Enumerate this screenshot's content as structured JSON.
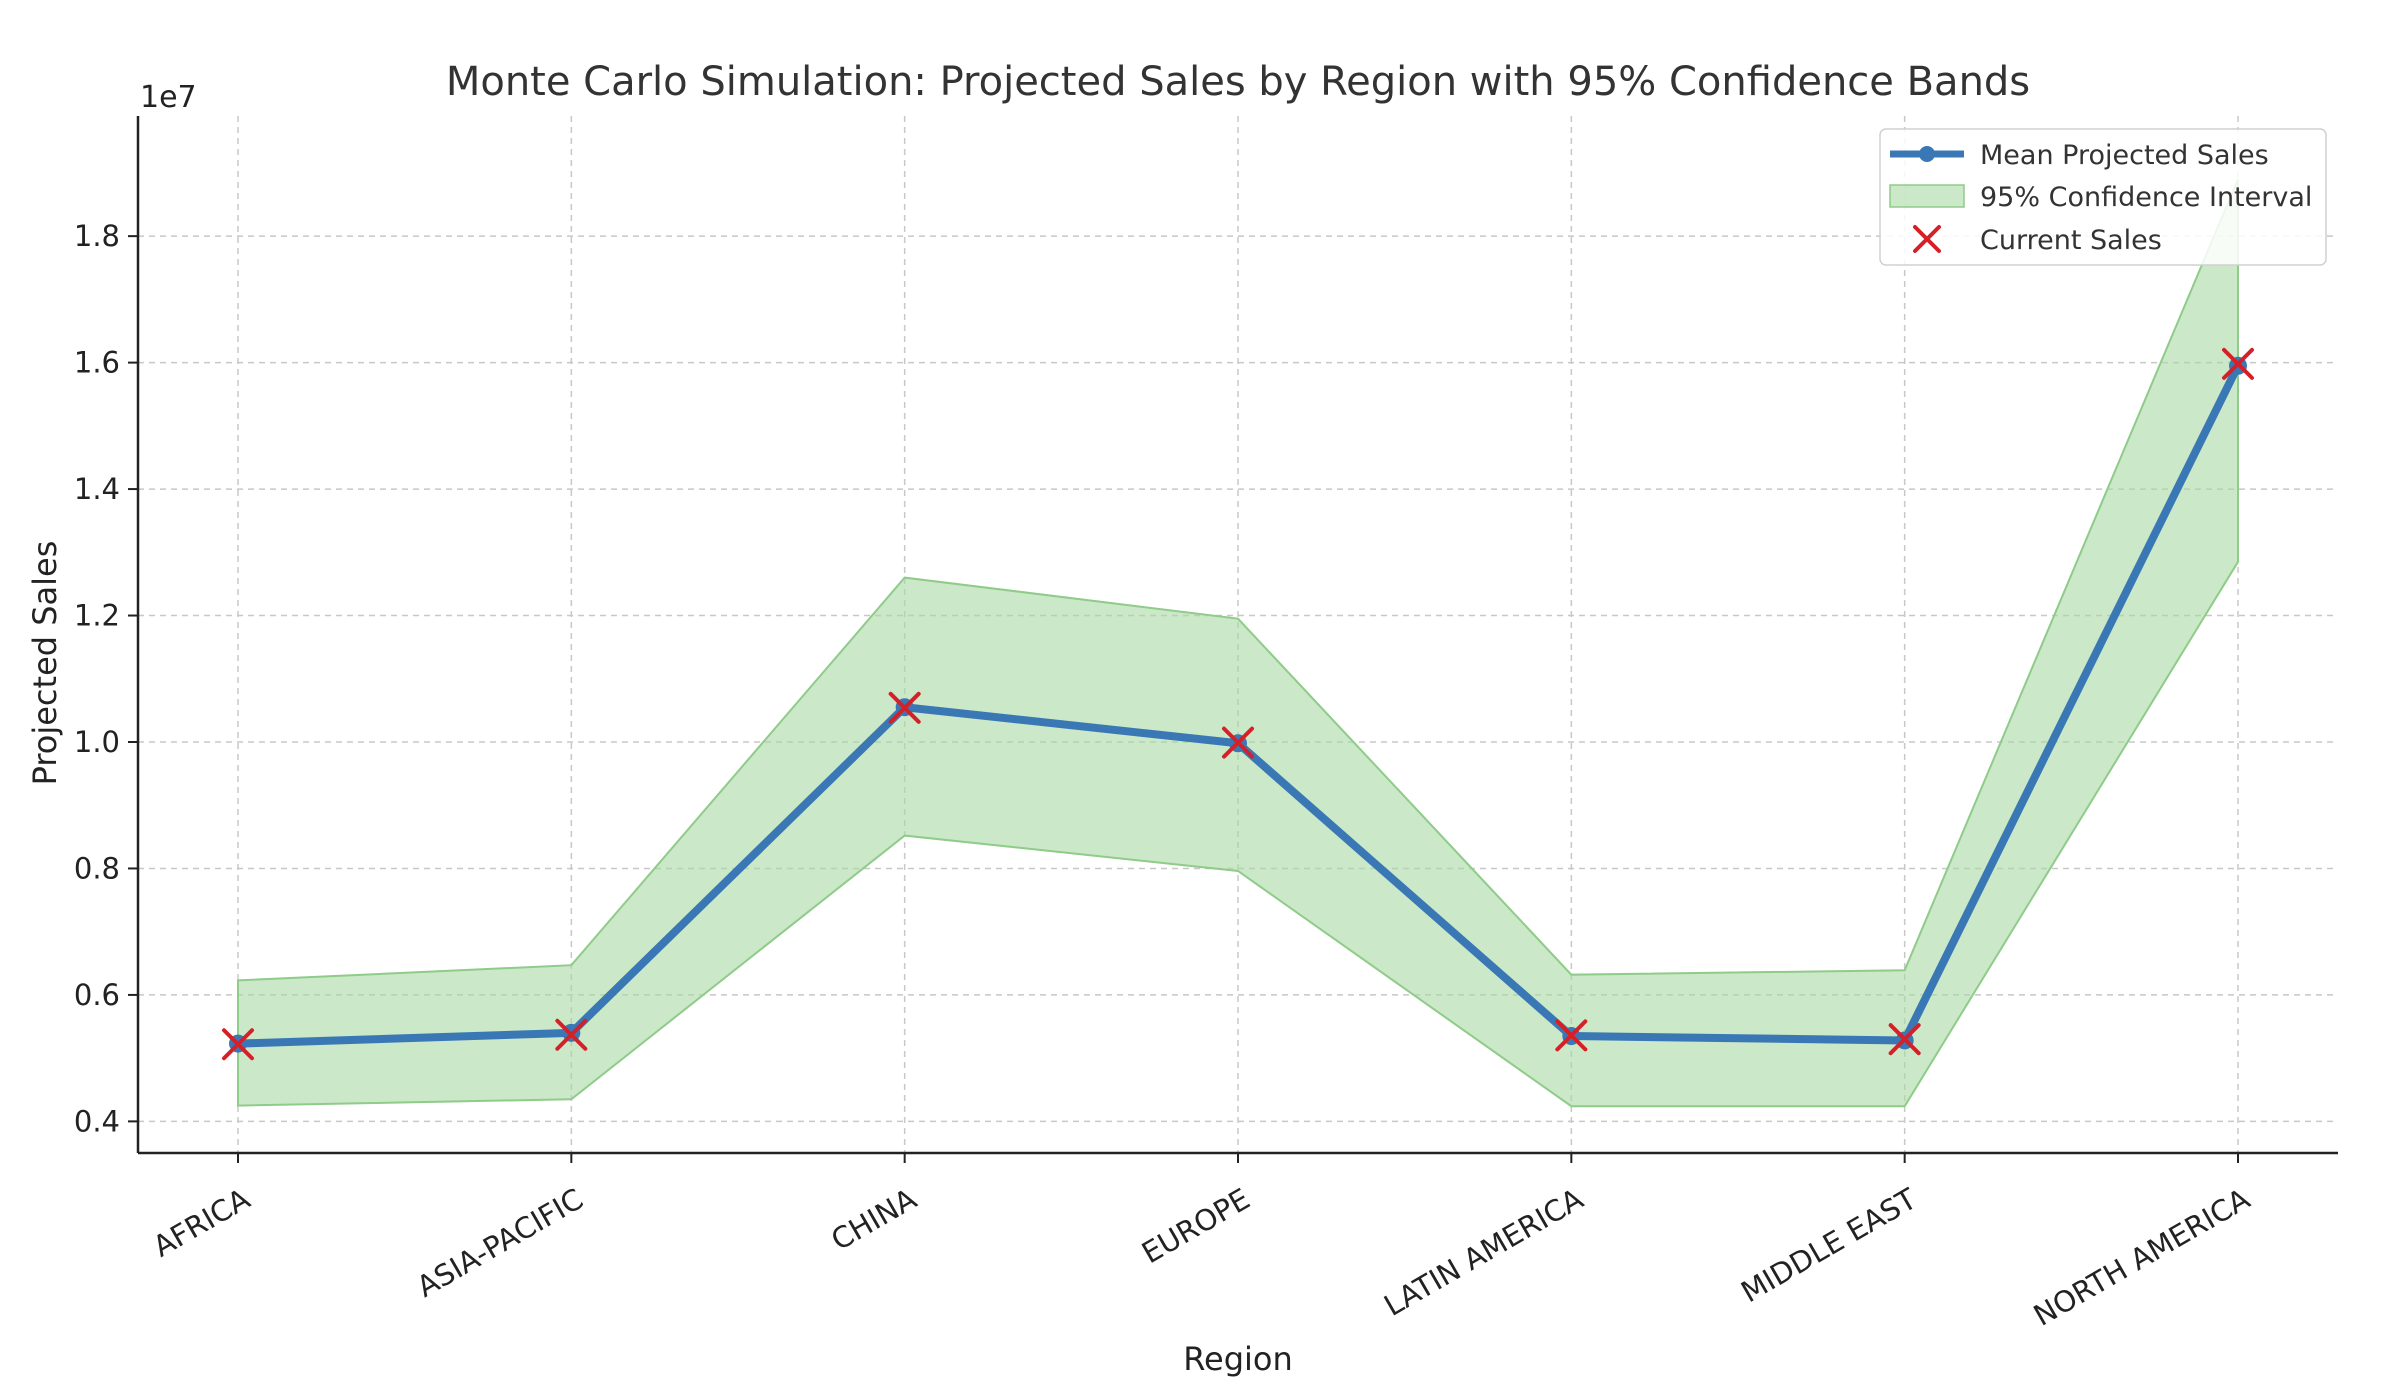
{
  "chart_data": {
    "type": "line",
    "title": "Monte Carlo Simulation: Projected Sales by Region with 95% Confidence Bands",
    "xlabel": "Region",
    "ylabel": "Projected Sales",
    "y_offset_label": "1e7",
    "y_scale_factor": 10000000,
    "ylim": [
      3500000,
      19900000
    ],
    "yticks": [
      4000000,
      6000000,
      8000000,
      10000000,
      12000000,
      14000000,
      16000000,
      18000000
    ],
    "ytick_labels": [
      "0.4",
      "0.6",
      "0.8",
      "1.0",
      "1.2",
      "1.4",
      "1.6",
      "1.8"
    ],
    "categories": [
      "AFRICA",
      "ASIA-PACIFIC",
      "CHINA",
      "EUROPE",
      "LATIN AMERICA",
      "MIDDLE EAST",
      "NORTH AMERICA"
    ],
    "grid": true,
    "legend_position": "top-right",
    "series": [
      {
        "name": "Mean Projected Sales",
        "kind": "line",
        "color": "#3a78b5",
        "values": [
          5230000,
          5400000,
          10550000,
          9980000,
          5350000,
          5280000,
          15950000
        ]
      },
      {
        "name": "95% Confidence Interval",
        "kind": "band",
        "color": "#a8d8a3",
        "lower": [
          4250000,
          4350000,
          8520000,
          7960000,
          4240000,
          4240000,
          12850000
        ],
        "upper": [
          6230000,
          6470000,
          12600000,
          11950000,
          6320000,
          6390000,
          18900000
        ]
      },
      {
        "name": "Current Sales",
        "kind": "scatter",
        "marker": "x",
        "color": "#d62027",
        "values": [
          5220000,
          5370000,
          10540000,
          9990000,
          5360000,
          5300000,
          15980000
        ]
      }
    ]
  }
}
